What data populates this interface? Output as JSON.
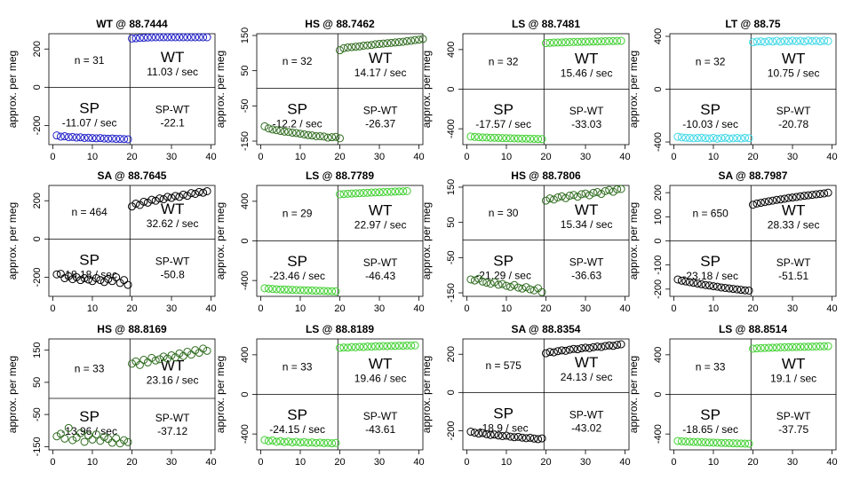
{
  "chart_data": [
    {
      "type": "scatter",
      "title": "WT @ 88.7444",
      "ylabel": "approx. per meg",
      "ylim": [
        -300,
        280
      ],
      "yticks": [
        -200,
        0,
        200
      ],
      "xlim": [
        -1,
        41
      ],
      "xticks": [
        0,
        10,
        20,
        30,
        40
      ],
      "n_label": "n = 31",
      "wt_label": "WT",
      "wt_rate": "11.03 / sec",
      "sp_label": "SP",
      "sp_rate": "-11.07 / sec",
      "diff_label": "SP-WT",
      "diff_value": "-22.1",
      "color": "#2020c8",
      "sp": {
        "x0": 1,
        "values": [
          -252,
          -258,
          -256,
          -261,
          -260,
          -263,
          -262,
          -265,
          -264,
          -266,
          -267,
          -266,
          -268,
          -269,
          -268,
          -270,
          -270,
          -271,
          -272
        ]
      },
      "wt": {
        "x0": 20,
        "values": [
          255,
          256,
          258,
          259,
          260,
          261,
          262,
          262,
          263,
          264,
          265,
          266,
          266,
          267,
          268,
          268,
          269,
          270,
          270,
          272
        ]
      }
    },
    {
      "type": "scatter",
      "title": "HS @ 88.7462",
      "ylabel": "approx. per meg",
      "ylim": [
        -160,
        155
      ],
      "yticks": [
        -150,
        -50,
        50,
        150
      ],
      "xlim": [
        -1,
        41
      ],
      "xticks": [
        0,
        10,
        20,
        30,
        40
      ],
      "n_label": "n = 32",
      "wt_label": "WT",
      "wt_rate": "14.17 / sec",
      "sp_label": "SP",
      "sp_rate": "-12.2 / sec",
      "diff_label": "SP-WT",
      "diff_value": "-26.37",
      "color": "#2e6b1e",
      "sp": {
        "x0": 1,
        "values": [
          -108,
          -114,
          -117,
          -119,
          -121,
          -123,
          -124,
          -126,
          -127,
          -129,
          -131,
          -133,
          -134,
          -136,
          -136,
          -137,
          -140,
          -139,
          -138,
          -142
        ]
      },
      "wt": {
        "x0": 20,
        "values": [
          108,
          114,
          116,
          117,
          118,
          119,
          121,
          122,
          123,
          125,
          126,
          127,
          128,
          129,
          130,
          131,
          132,
          134,
          135,
          137,
          138,
          140
        ]
      }
    },
    {
      "type": "scatter",
      "title": "LS @ 88.7481",
      "ylabel": "approx. per meg",
      "ylim": [
        -560,
        560
      ],
      "yticks": [
        -400,
        0,
        400
      ],
      "xlim": [
        -1,
        41
      ],
      "xticks": [
        0,
        10,
        20,
        30,
        40
      ],
      "n_label": "n = 32",
      "wt_label": "WT",
      "wt_rate": "15.46 / sec",
      "sp_label": "SP",
      "sp_rate": "-17.57 / sec",
      "diff_label": "SP-WT",
      "diff_value": "-33.03",
      "color": "#40d030",
      "sp": {
        "x0": 1,
        "values": [
          -478,
          -482,
          -485,
          -487,
          -488,
          -490,
          -491,
          -492,
          -494,
          -495,
          -496,
          -497,
          -498,
          -499,
          -500,
          -501,
          -502,
          -503,
          -504
        ]
      },
      "wt": {
        "x0": 20,
        "values": [
          465,
          468,
          470,
          471,
          472,
          474,
          475,
          476,
          477,
          478,
          479,
          480,
          481,
          482,
          483,
          484,
          485,
          486,
          487,
          488
        ]
      }
    },
    {
      "type": "scatter",
      "title": "LT @ 88.75",
      "ylabel": "approx. per meg",
      "ylim": [
        -420,
        420
      ],
      "yticks": [
        -400,
        0,
        400
      ],
      "xlim": [
        -1,
        41
      ],
      "xticks": [
        0,
        10,
        20,
        30,
        40
      ],
      "n_label": "n = 32",
      "wt_label": "WT",
      "wt_rate": "10.75 / sec",
      "sp_label": "SP",
      "sp_rate": "-10.03 / sec",
      "diff_label": "SP-WT",
      "diff_value": "-20.78",
      "color": "#40d8e8",
      "sp": {
        "x0": 1,
        "values": [
          -360,
          -365,
          -368,
          -370,
          -372,
          -370,
          -368,
          -371,
          -373,
          -369,
          -375,
          -371,
          -368,
          -374,
          -372,
          -370,
          -373,
          -369,
          -371
        ]
      },
      "wt": {
        "x0": 20,
        "values": [
          355,
          360,
          362,
          358,
          364,
          361,
          366,
          360,
          365,
          362,
          367,
          363,
          366,
          361,
          368,
          364,
          366,
          362,
          367,
          364
        ]
      }
    },
    {
      "type": "scatter",
      "title": "SA @ 88.7645",
      "ylabel": "approx. per meg",
      "ylim": [
        -300,
        280
      ],
      "yticks": [
        -200,
        0,
        200
      ],
      "xlim": [
        -1,
        41
      ],
      "xticks": [
        0,
        10,
        20,
        30,
        40
      ],
      "n_label": "n = 464",
      "wt_label": "WT",
      "wt_rate": "32.62 / sec",
      "sp_label": "SP",
      "sp_rate": "-18.18 / sec",
      "diff_label": "SP-WT",
      "diff_value": "-50.8",
      "color": "#000000",
      "sp": {
        "x0": 1,
        "values": [
          -185,
          -182,
          -205,
          -195,
          -210,
          -200,
          -215,
          -205,
          -212,
          -220,
          -205,
          -215,
          -225,
          -210,
          -220,
          -200,
          -230,
          -215,
          -240
        ]
      },
      "wt": {
        "x0": 20,
        "values": [
          170,
          185,
          178,
          195,
          190,
          205,
          200,
          212,
          208,
          220,
          215,
          225,
          220,
          232,
          226,
          240,
          236,
          246,
          242,
          250
        ]
      }
    },
    {
      "type": "scatter",
      "title": "LS @ 88.7789",
      "ylabel": "approx. per meg",
      "ylim": [
        -560,
        560
      ],
      "yticks": [
        -400,
        0,
        400
      ],
      "xlim": [
        -1,
        41
      ],
      "xticks": [
        0,
        10,
        20,
        30,
        40
      ],
      "n_label": "n = 29",
      "wt_label": "WT",
      "wt_rate": "22.97 / sec",
      "sp_label": "SP",
      "sp_rate": "-23.46 / sec",
      "diff_label": "SP-WT",
      "diff_value": "-46.43",
      "color": "#40d030",
      "sp": {
        "x0": 1,
        "values": [
          -478,
          -482,
          -485,
          -488,
          -490,
          -491,
          -493,
          -494,
          -496,
          -497,
          -499,
          -500,
          -501,
          -503,
          -504,
          -505,
          -507,
          -508,
          -510
        ]
      },
      "wt": {
        "x0": 20,
        "values": [
          470,
          473,
          476,
          478,
          480,
          482,
          484,
          486,
          488,
          490,
          491,
          493,
          495,
          496,
          498,
          500,
          501,
          503
        ]
      }
    },
    {
      "type": "scatter",
      "title": "HS @ 88.7806",
      "ylabel": "approx. per meg",
      "ylim": [
        -160,
        155
      ],
      "yticks": [
        -150,
        -50,
        50,
        150
      ],
      "xlim": [
        -1,
        41
      ],
      "xticks": [
        0,
        10,
        20,
        30,
        40
      ],
      "n_label": "n = 30",
      "wt_label": "WT",
      "wt_rate": "15.34 / sec",
      "sp_label": "SP",
      "sp_rate": "-21.29 / sec",
      "diff_label": "SP-WT",
      "diff_value": "-36.63",
      "color": "#2e6b1e",
      "sp": {
        "x0": 1,
        "values": [
          -112,
          -115,
          -110,
          -118,
          -121,
          -124,
          -120,
          -127,
          -125,
          -130,
          -133,
          -128,
          -135,
          -138,
          -134,
          -140,
          -143,
          -137,
          -148
        ]
      },
      "wt": {
        "x0": 20,
        "values": [
          112,
          118,
          115,
          121,
          124,
          119,
          126,
          128,
          123,
          130,
          132,
          127,
          134,
          136,
          131,
          139,
          142,
          137,
          144,
          146
        ]
      }
    },
    {
      "type": "scatter",
      "title": "SA @ 88.7987",
      "ylabel": "approx. per meg",
      "ylim": [
        -230,
        230
      ],
      "yticks": [
        -200,
        -100,
        0,
        100,
        200
      ],
      "xlim": [
        -1,
        41
      ],
      "xticks": [
        0,
        10,
        20,
        30,
        40
      ],
      "n_label": "n = 650",
      "wt_label": "WT",
      "wt_rate": "28.33 / sec",
      "sp_label": "SP",
      "sp_rate": "-23.18 / sec",
      "diff_label": "SP-WT",
      "diff_value": "-51.51",
      "color": "#000000",
      "sp": {
        "x0": 1,
        "values": [
          -160,
          -165,
          -168,
          -171,
          -174,
          -177,
          -180,
          -183,
          -185,
          -188,
          -190,
          -193,
          -195,
          -197,
          -199,
          -201,
          -203,
          -205,
          -206
        ]
      },
      "wt": {
        "x0": 20,
        "values": [
          150,
          155,
          158,
          161,
          164,
          167,
          170,
          172,
          175,
          178,
          180,
          182,
          185,
          187,
          189,
          191,
          193,
          195,
          197,
          200
        ]
      }
    },
    {
      "type": "scatter",
      "title": "HS @ 88.8169",
      "ylabel": "approx. per meg",
      "ylim": [
        -160,
        185
      ],
      "yticks": [
        -150,
        -50,
        50,
        150
      ],
      "xlim": [
        -1,
        41
      ],
      "xticks": [
        0,
        10,
        20,
        30,
        40
      ],
      "n_label": "n = 33",
      "wt_label": "WT",
      "wt_rate": "23.16 / sec",
      "sp_label": "SP",
      "sp_rate": "-13.96 / sec",
      "diff_label": "SP-WT",
      "diff_value": "-37.12",
      "color": "#2e6b1e",
      "sp": {
        "x0": 1,
        "values": [
          -118,
          -110,
          -125,
          -92,
          -130,
          -122,
          -108,
          -135,
          -115,
          -128,
          -112,
          -132,
          -120,
          -126,
          -138,
          -124,
          -140,
          -130,
          -136
        ]
      },
      "wt": {
        "x0": 20,
        "values": [
          108,
          115,
          104,
          120,
          112,
          126,
          118,
          122,
          130,
          124,
          134,
          128,
          140,
          132,
          145,
          136,
          150,
          142,
          155,
          148
        ]
      }
    },
    {
      "type": "scatter",
      "title": "LS @ 88.8189",
      "ylabel": "approx. per meg",
      "ylim": [
        -560,
        560
      ],
      "yticks": [
        -400,
        0,
        400
      ],
      "xlim": [
        -1,
        41
      ],
      "xticks": [
        0,
        10,
        20,
        30,
        40
      ],
      "n_label": "n = 33",
      "wt_label": "WT",
      "wt_rate": "19.46 / sec",
      "sp_label": "SP",
      "sp_rate": "-24.15 / sec",
      "diff_label": "SP-WT",
      "diff_value": "-43.61",
      "color": "#40d030",
      "sp": {
        "x0": 1,
        "values": [
          -460,
          -470,
          -465,
          -478,
          -472,
          -480,
          -476,
          -484,
          -479,
          -486,
          -482,
          -488,
          -485,
          -490,
          -487,
          -492,
          -489,
          -494,
          -491
        ]
      },
      "wt": {
        "x0": 20,
        "values": [
          470,
          474,
          472,
          478,
          476,
          481,
          479,
          484,
          482,
          486,
          485,
          488,
          487,
          490,
          489,
          492,
          491,
          494,
          493,
          495
        ]
      }
    },
    {
      "type": "scatter",
      "title": "SA @ 88.8354",
      "ylabel": "approx. per meg",
      "ylim": [
        -300,
        280
      ],
      "yticks": [
        -200,
        0,
        200
      ],
      "xlim": [
        -1,
        41
      ],
      "xticks": [
        0,
        10,
        20,
        30,
        40
      ],
      "n_label": "n = 575",
      "wt_label": "WT",
      "wt_rate": "24.13 / sec",
      "sp_label": "SP",
      "sp_rate": "-18.9 / sec",
      "diff_label": "SP-WT",
      "diff_value": "-43.02",
      "color": "#000000",
      "sp": {
        "x0": 1,
        "values": [
          -205,
          -210,
          -215,
          -212,
          -218,
          -222,
          -220,
          -225,
          -228,
          -226,
          -231,
          -234,
          -232,
          -236,
          -239,
          -237,
          -241,
          -244,
          -240
        ]
      },
      "wt": {
        "x0": 20,
        "values": [
          205,
          212,
          210,
          216,
          220,
          218,
          224,
          228,
          226,
          231,
          234,
          232,
          237,
          240,
          238,
          243,
          246,
          244,
          249,
          252
        ]
      }
    },
    {
      "type": "scatter",
      "title": "LS @ 88.8514",
      "ylabel": "approx. per meg",
      "ylim": [
        -560,
        560
      ],
      "yticks": [
        -400,
        0,
        400
      ],
      "xlim": [
        -1,
        41
      ],
      "xticks": [
        0,
        10,
        20,
        30,
        40
      ],
      "n_label": "n = 33",
      "wt_label": "WT",
      "wt_rate": "19.1 / sec",
      "sp_label": "SP",
      "sp_rate": "-18.65 / sec",
      "diff_label": "SP-WT",
      "diff_value": "-37.75",
      "color": "#40d030",
      "sp": {
        "x0": 1,
        "values": [
          -470,
          -474,
          -476,
          -478,
          -480,
          -481,
          -483,
          -484,
          -486,
          -487,
          -488,
          -490,
          -491,
          -492,
          -494,
          -495,
          -496,
          -497,
          -498
        ]
      },
      "wt": {
        "x0": 20,
        "values": [
          462,
          465,
          467,
          469,
          470,
          472,
          473,
          475,
          476,
          477,
          478,
          479,
          480,
          481,
          482,
          483,
          484,
          485,
          486,
          487
        ]
      }
    }
  ]
}
